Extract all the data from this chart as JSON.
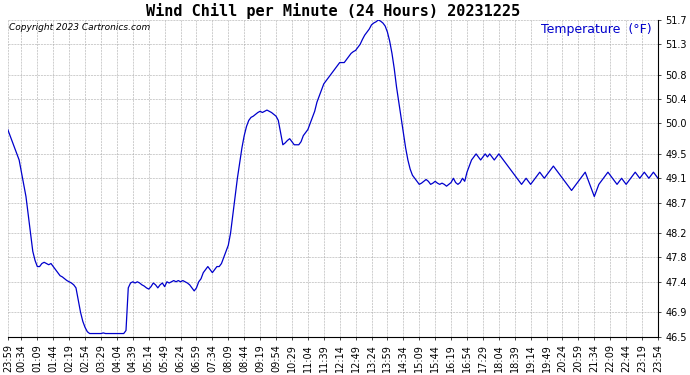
{
  "title": "Wind Chill per Minute (24 Hours) 20231225",
  "ylabel": "Temperature  (°F)",
  "copyright_text": "Copyright 2023 Cartronics.com",
  "line_color": "#0000cc",
  "ylabel_color": "#0000cc",
  "background_color": "#ffffff",
  "grid_color": "#aaaaaa",
  "ylim": [
    46.5,
    51.7
  ],
  "yticks": [
    46.5,
    46.9,
    47.4,
    47.8,
    48.2,
    48.7,
    49.1,
    49.5,
    50.0,
    50.4,
    50.8,
    51.3,
    51.7
  ],
  "title_fontsize": 11,
  "tick_fontsize": 7,
  "ylabel_fontsize": 9,
  "copyright_fontsize": 6.5,
  "x_tick_labels": [
    "23:59",
    "00:34",
    "01:09",
    "01:44",
    "02:19",
    "02:54",
    "03:29",
    "04:04",
    "04:39",
    "05:14",
    "05:49",
    "06:24",
    "06:59",
    "07:34",
    "08:09",
    "08:44",
    "09:19",
    "09:54",
    "10:29",
    "11:04",
    "11:39",
    "12:14",
    "12:49",
    "13:24",
    "13:59",
    "14:34",
    "15:09",
    "15:44",
    "16:19",
    "16:54",
    "17:29",
    "18:04",
    "18:39",
    "19:14",
    "19:49",
    "20:24",
    "20:59",
    "21:34",
    "22:09",
    "22:44",
    "23:19",
    "23:54"
  ],
  "wind_chill_data": [
    49.9,
    49.8,
    49.7,
    49.6,
    49.5,
    49.4,
    49.2,
    49.0,
    48.8,
    48.5,
    48.2,
    47.9,
    47.75,
    47.65,
    47.65,
    47.7,
    47.72,
    47.7,
    47.68,
    47.7,
    47.65,
    47.6,
    47.55,
    47.5,
    47.48,
    47.45,
    47.42,
    47.4,
    47.38,
    47.35,
    47.3,
    47.1,
    46.9,
    46.75,
    46.65,
    46.58,
    46.55,
    46.55,
    46.55,
    46.55,
    46.55,
    46.55,
    46.56,
    46.55,
    46.55,
    46.55,
    46.55,
    46.55,
    46.55,
    46.55,
    46.55,
    46.55,
    46.6,
    47.3,
    47.38,
    47.4,
    47.38,
    47.4,
    47.38,
    47.35,
    47.33,
    47.3,
    47.28,
    47.32,
    47.38,
    47.35,
    47.3,
    47.35,
    47.38,
    47.32,
    47.4,
    47.38,
    47.4,
    47.42,
    47.4,
    47.42,
    47.4,
    47.42,
    47.4,
    47.38,
    47.35,
    47.3,
    47.25,
    47.3,
    47.4,
    47.45,
    47.55,
    47.6,
    47.65,
    47.6,
    47.55,
    47.6,
    47.65,
    47.65,
    47.7,
    47.8,
    47.9,
    48.0,
    48.2,
    48.5,
    48.8,
    49.1,
    49.35,
    49.6,
    49.8,
    49.95,
    50.05,
    50.1,
    50.12,
    50.15,
    50.18,
    50.2,
    50.18,
    50.2,
    50.22,
    50.2,
    50.18,
    50.15,
    50.12,
    50.05,
    49.85,
    49.65,
    49.68,
    49.72,
    49.75,
    49.7,
    49.65,
    49.65,
    49.65,
    49.7,
    49.8,
    49.85,
    49.9,
    50.0,
    50.1,
    50.2,
    50.35,
    50.45,
    50.55,
    50.65,
    50.7,
    50.75,
    50.8,
    50.85,
    50.9,
    50.95,
    51.0,
    51.0,
    51.0,
    51.05,
    51.1,
    51.15,
    51.18,
    51.2,
    51.25,
    51.3,
    51.38,
    51.45,
    51.5,
    51.55,
    51.62,
    51.65,
    51.67,
    51.7,
    51.68,
    51.65,
    51.6,
    51.5,
    51.35,
    51.15,
    50.9,
    50.6,
    50.35,
    50.1,
    49.85,
    49.6,
    49.4,
    49.25,
    49.15,
    49.1,
    49.05,
    49.0,
    49.02,
    49.05,
    49.08,
    49.05,
    49.0,
    49.02,
    49.05,
    49.02,
    49.0,
    49.02,
    49.0,
    48.97,
    49.0,
    49.03,
    49.1,
    49.03,
    49.0,
    49.03,
    49.1,
    49.05,
    49.2,
    49.3,
    49.4,
    49.45,
    49.5,
    49.45,
    49.4,
    49.45,
    49.5,
    49.45,
    49.5,
    49.45,
    49.4,
    49.45,
    49.5,
    49.45,
    49.4,
    49.35,
    49.3,
    49.25,
    49.2,
    49.15,
    49.1,
    49.05,
    49.0,
    49.05,
    49.1,
    49.05,
    49.0,
    49.05,
    49.1,
    49.15,
    49.2,
    49.15,
    49.1,
    49.15,
    49.2,
    49.25,
    49.3,
    49.25,
    49.2,
    49.15,
    49.1,
    49.05,
    49.0,
    48.95,
    48.9,
    48.95,
    49.0,
    49.05,
    49.1,
    49.15,
    49.2,
    49.1,
    49.0,
    48.9,
    48.8,
    48.9,
    49.0,
    49.05,
    49.1,
    49.15,
    49.2,
    49.15,
    49.1,
    49.05,
    49.0,
    49.05,
    49.1,
    49.05,
    49.0,
    49.05,
    49.1,
    49.15,
    49.2,
    49.15,
    49.1,
    49.15,
    49.2,
    49.15,
    49.1,
    49.15,
    49.2,
    49.15,
    49.1
  ]
}
